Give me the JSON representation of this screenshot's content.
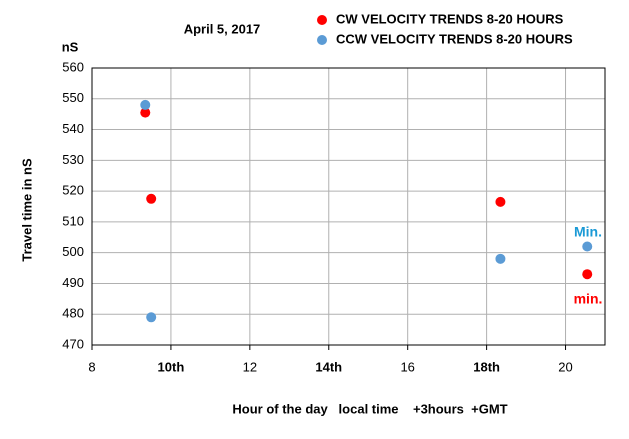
{
  "chart_data": {
    "type": "scatter",
    "title": "April 5, 2017",
    "y_unit": "nS",
    "ylabel": "Travel time in nS",
    "xlabel": "Hour of the day   local time    +3hours  +GMT",
    "xlim": [
      8,
      21
    ],
    "ylim": [
      470,
      560
    ],
    "xticks": [
      8,
      {
        "value": 10,
        "label": "10th"
      },
      12,
      {
        "value": 14,
        "label": "14th"
      },
      16,
      {
        "value": 18,
        "label": "18th"
      },
      20
    ],
    "yticks": [
      470,
      480,
      490,
      500,
      510,
      520,
      530,
      540,
      550,
      560
    ],
    "grid": true,
    "series": [
      {
        "name": "CW VELOCITY TRENDS 8-20 HOURS",
        "color": "#ff0000",
        "x": [
          9.35,
          9.5,
          18.35,
          20.55
        ],
        "values": [
          545.5,
          517.5,
          516.5,
          493
        ]
      },
      {
        "name": "CCW VELOCITY TRENDS 8-20 HOURS",
        "color": "#5b9bd5",
        "x": [
          9.35,
          9.5,
          18.35,
          20.55
        ],
        "values": [
          548,
          479,
          498,
          502
        ]
      }
    ],
    "annotations": [
      {
        "text": "Min.",
        "color": "#1b9ad6"
      },
      {
        "text": "min.",
        "color": "#ff0000"
      }
    ]
  }
}
